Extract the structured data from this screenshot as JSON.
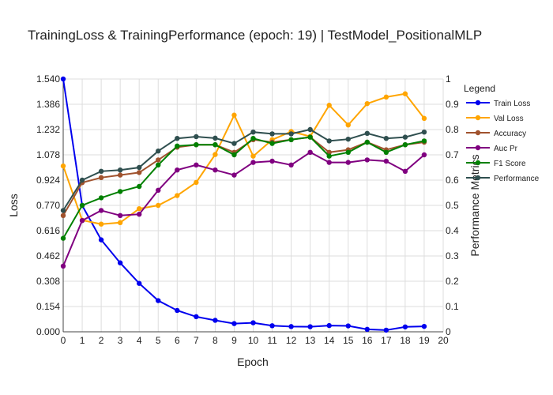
{
  "chart_data": {
    "type": "line",
    "title": "TrainingLoss & TrainingPerformance (epoch: 19) | TestModel_PositionalMLP",
    "xlabel": "Epoch",
    "ylabel": "Loss",
    "y2label": "Performance Metrics",
    "xlim": [
      0,
      20
    ],
    "ylim": [
      0,
      1.54
    ],
    "y2lim": [
      0,
      1
    ],
    "x_ticks": [
      0,
      1,
      2,
      3,
      4,
      5,
      6,
      7,
      8,
      9,
      10,
      11,
      12,
      13,
      14,
      15,
      16,
      17,
      18,
      19,
      20
    ],
    "y_ticks": [
      0.0,
      0.154,
      0.308,
      0.462,
      0.616,
      0.77,
      0.924,
      1.078,
      1.232,
      1.386,
      1.54
    ],
    "y_tick_labels": [
      "0.000",
      "0.154",
      "0.308",
      "0.462",
      "0.616",
      "0.770",
      "0.924",
      "1.078",
      "1.232",
      "1.386",
      "1.540"
    ],
    "y2_ticks": [
      0,
      0.1,
      0.2,
      0.3,
      0.4,
      0.5,
      0.6,
      0.7,
      0.8,
      0.9,
      1
    ],
    "y2_tick_labels": [
      "0",
      "0.1",
      "0.2",
      "0.3",
      "0.4",
      "0.5",
      "0.6",
      "0.7",
      "0.8",
      "0.9",
      "1"
    ],
    "grid": true,
    "legend_title": "Legend",
    "legend_position": "right",
    "x": [
      0,
      1,
      2,
      3,
      4,
      5,
      6,
      7,
      8,
      9,
      10,
      11,
      12,
      13,
      14,
      15,
      16,
      17,
      18,
      19
    ],
    "series": [
      {
        "name": "Train Loss",
        "axis": "left",
        "color": "#0000ee",
        "values": [
          1.54,
          0.77,
          0.56,
          0.42,
          0.295,
          0.19,
          0.13,
          0.092,
          0.07,
          0.05,
          0.055,
          0.037,
          0.032,
          0.031,
          0.038,
          0.036,
          0.015,
          0.01,
          0.03,
          0.033
        ]
      },
      {
        "name": "Val Loss",
        "axis": "left",
        "color": "#ffa500",
        "values": [
          1.01,
          0.68,
          0.656,
          0.665,
          0.75,
          0.77,
          0.83,
          0.91,
          1.08,
          1.32,
          1.07,
          1.17,
          1.22,
          1.19,
          1.38,
          1.26,
          1.39,
          1.43,
          1.45,
          1.3
        ]
      },
      {
        "name": "Accuracy",
        "axis": "right",
        "color": "#a0522d",
        "values": [
          0.46,
          0.59,
          0.61,
          0.62,
          0.63,
          0.68,
          0.73,
          0.74,
          0.74,
          0.71,
          0.76,
          0.75,
          0.76,
          0.77,
          0.71,
          0.72,
          0.75,
          0.72,
          0.74,
          0.75
        ]
      },
      {
        "name": "Auc Pr",
        "axis": "right",
        "color": "#800080",
        "values": [
          0.26,
          0.44,
          0.48,
          0.46,
          0.465,
          0.56,
          0.64,
          0.66,
          0.64,
          0.62,
          0.67,
          0.675,
          0.66,
          0.71,
          0.67,
          0.67,
          0.68,
          0.675,
          0.635,
          0.7
        ]
      },
      {
        "name": "F1 Score",
        "axis": "right",
        "color": "#008000",
        "values": [
          0.37,
          0.5,
          0.53,
          0.555,
          0.575,
          0.66,
          0.735,
          0.74,
          0.74,
          0.7,
          0.765,
          0.745,
          0.76,
          0.77,
          0.695,
          0.71,
          0.75,
          0.71,
          0.74,
          0.755
        ]
      },
      {
        "name": "Performance",
        "axis": "right",
        "color": "#2f4f4f",
        "values": [
          0.48,
          0.6,
          0.635,
          0.64,
          0.65,
          0.715,
          0.765,
          0.772,
          0.766,
          0.745,
          0.79,
          0.783,
          0.783,
          0.8,
          0.755,
          0.762,
          0.785,
          0.765,
          0.77,
          0.79
        ]
      }
    ]
  }
}
